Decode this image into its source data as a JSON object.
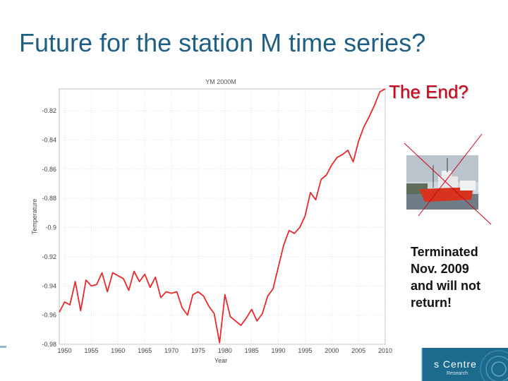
{
  "slide": {
    "title": "Future for the station M time series?",
    "the_end": "The End?",
    "note_lines": [
      "Terminated",
      "Nov. 2009",
      "and will not",
      "return!"
    ],
    "logo_text": "s Centre",
    "logo_subtext": "Research"
  },
  "colors": {
    "title": "#1f5f84",
    "line": "#e8282b",
    "the_end": "#d0021b",
    "cross": "#d0021b",
    "logo_bg": "#1d6a8f"
  },
  "chart_data": {
    "type": "line",
    "title": "YM 2000M",
    "xlabel": "Year",
    "ylabel": "Temperature",
    "xlim": [
      1949,
      2010
    ],
    "ylim": [
      -0.98,
      -0.805
    ],
    "xticks": [
      1950,
      1955,
      1960,
      1965,
      1970,
      1975,
      1980,
      1985,
      1990,
      1995,
      2000,
      2005,
      2010
    ],
    "yticks": [
      -0.98,
      -0.96,
      -0.94,
      -0.92,
      -0.9,
      -0.88,
      -0.86,
      -0.84,
      -0.82
    ],
    "ytick_labels": [
      "-0.98",
      "-0.96",
      "-0.94",
      "-0.92",
      "-0.9",
      "-0.88",
      "-0.86",
      "-0.84",
      "-0.82"
    ],
    "grid": true,
    "series": [
      {
        "x": [
          1949,
          1950,
          1951,
          1952,
          1953,
          1954,
          1955,
          1956,
          1957,
          1958,
          1959,
          1960,
          1961,
          1962,
          1963,
          1964,
          1965,
          1966,
          1967,
          1968,
          1969,
          1970,
          1971,
          1972,
          1973,
          1974,
          1975,
          1976,
          1977,
          1978,
          1979,
          1980,
          1981,
          1982,
          1983,
          1984,
          1985,
          1986,
          1987,
          1988,
          1989,
          1990,
          1991,
          1992,
          1993,
          1994,
          1995,
          1996,
          1997,
          1998,
          1999,
          2000,
          2001,
          2002,
          2003,
          2004,
          2005,
          2006,
          2007,
          2008,
          2009,
          2010
        ],
        "y": [
          -0.958,
          -0.951,
          -0.953,
          -0.937,
          -0.957,
          -0.936,
          -0.94,
          -0.939,
          -0.931,
          -0.944,
          -0.931,
          -0.933,
          -0.935,
          -0.943,
          -0.93,
          -0.937,
          -0.932,
          -0.941,
          -0.934,
          -0.948,
          -0.944,
          -0.945,
          -0.944,
          -0.955,
          -0.96,
          -0.946,
          -0.944,
          -0.947,
          -0.954,
          -0.959,
          -0.979,
          -0.946,
          -0.961,
          -0.964,
          -0.967,
          -0.962,
          -0.956,
          -0.964,
          -0.959,
          -0.947,
          -0.942,
          -0.927,
          -0.912,
          -0.902,
          -0.904,
          -0.9,
          -0.892,
          -0.876,
          -0.881,
          -0.867,
          -0.864,
          -0.857,
          -0.852,
          -0.85,
          -0.847,
          -0.855,
          -0.841,
          -0.831,
          -0.824,
          -0.816,
          -0.807,
          -0.805
        ]
      }
    ]
  }
}
